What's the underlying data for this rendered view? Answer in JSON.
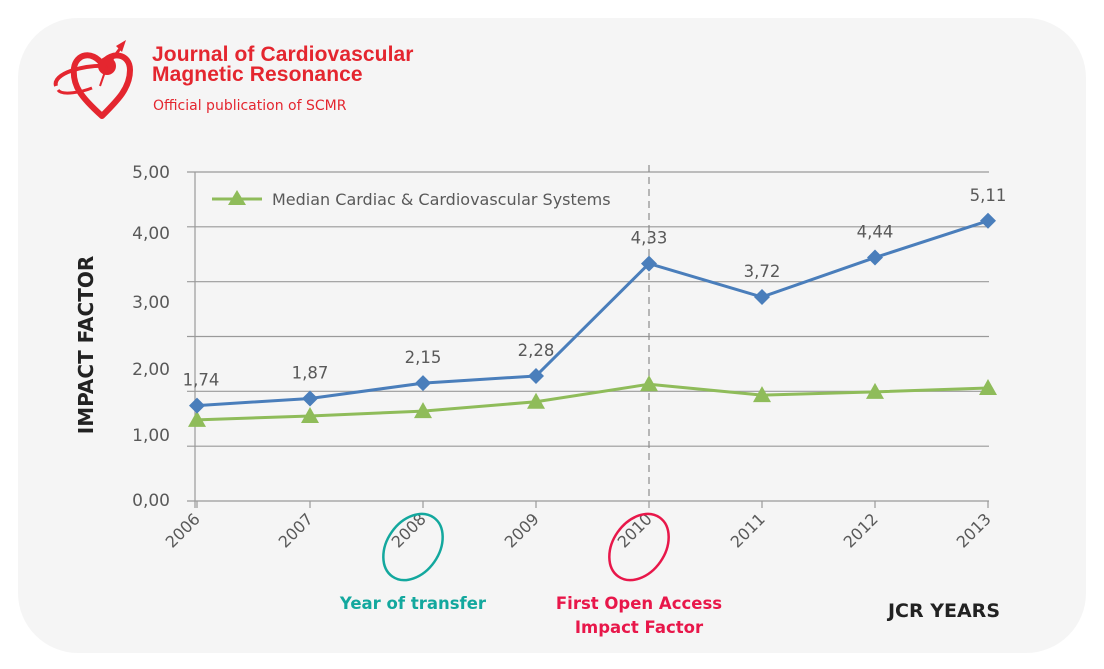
{
  "header": {
    "journal_line1": "Journal of Cardiovascular",
    "journal_line2": "Magnetic Resonance",
    "subtitle": "Official publication of SCMR",
    "logo_icon": "heart-orbit-logo-icon",
    "brand_color": "#e4262f"
  },
  "chart_data": {
    "type": "line",
    "title": "",
    "xlabel": "JCR YEARS",
    "ylabel": "IMPACT FACTOR",
    "categories": [
      "2006",
      "2007",
      "2008",
      "2009",
      "2010",
      "2011",
      "2012",
      "2013"
    ],
    "y_tick_labels": [
      "0,00",
      "1,00",
      "2,00",
      "3,00",
      "4,00",
      "5,00"
    ],
    "plot_range": [
      0,
      6
    ],
    "grid": true,
    "legend_position": "top-left",
    "series": [
      {
        "name": "Journal of Cardiovascular Magnetic Resonance",
        "marker": "diamond",
        "color": "#4a7ebb",
        "values": [
          1.74,
          1.87,
          2.15,
          2.28,
          4.33,
          3.72,
          4.44,
          5.11
        ],
        "labels": [
          "1,74",
          "1,87",
          "2,15",
          "2,28",
          "4,33",
          "3,72",
          "4,44",
          "5,11"
        ],
        "show_in_legend": false
      },
      {
        "name": "Median Cardiac & Cardiovascular Systems",
        "marker": "triangle",
        "color": "#8fbc5a",
        "values": [
          1.48,
          1.55,
          1.64,
          1.81,
          2.13,
          1.93,
          1.99,
          2.06
        ],
        "show_in_legend": true
      }
    ],
    "reference_line": {
      "category": "2010",
      "style": "dashed"
    },
    "annotations": [
      {
        "category": "2008",
        "text": "Year of transfer",
        "color": "#13a89e",
        "circled": true
      },
      {
        "category": "2010",
        "text_lines": [
          "First Open Access",
          "Impact Factor"
        ],
        "color": "#e8174a",
        "circled": true
      }
    ]
  }
}
